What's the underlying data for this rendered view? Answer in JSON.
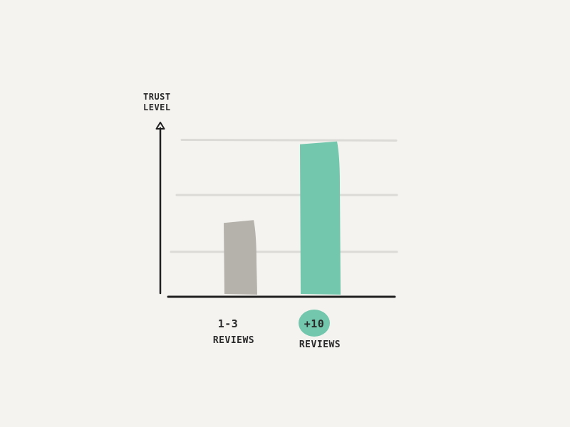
{
  "chart_data": {
    "type": "bar",
    "ylabel_lines": [
      "TRUST",
      "LEVEL"
    ],
    "categories": [
      {
        "lines": [
          "1-3",
          "REVIEWS"
        ],
        "highlighted_line": null
      },
      {
        "lines": [
          "+10",
          "REVIEWS"
        ],
        "highlighted_line": 0
      }
    ],
    "values": [
      0.45,
      0.92
    ],
    "ylim": [
      0,
      1
    ],
    "grid_levels": [
      0.26,
      0.6,
      0.93
    ],
    "grid": true,
    "colors": {
      "background": "#f4f3f0",
      "axis": "#1f1f1f",
      "grid": "#dcdad6",
      "bars": [
        "#b5b1ab",
        "#72c7ad"
      ],
      "highlight": "#72c7ad"
    }
  }
}
